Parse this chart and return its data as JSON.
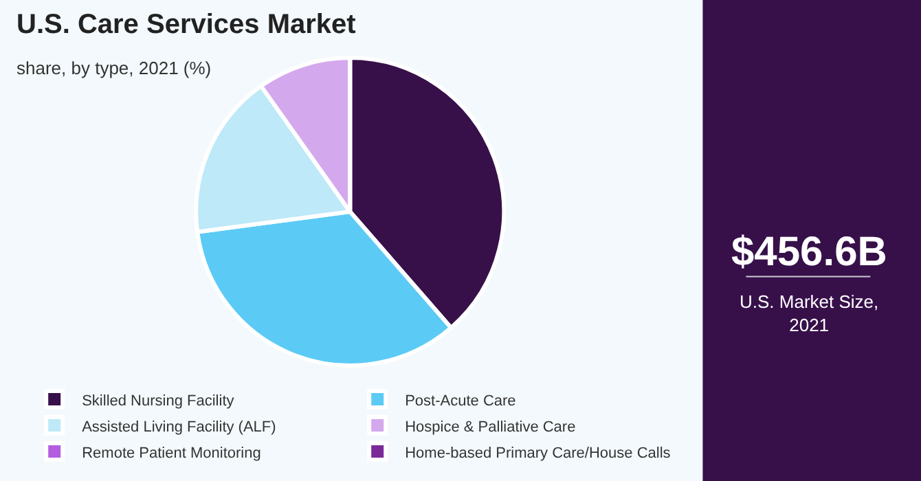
{
  "chart_data": {
    "type": "pie",
    "title": "U.S. Care Services Market",
    "subtitle": "share, by type, 2021 (%)",
    "categories": [
      "Skilled Nursing Facility",
      "Post-Acute Care",
      "Assisted Living Facility (ALF)",
      "Hospice & Palliative Care",
      "Remote Patient Monitoring",
      "Home-based Primary Care/House Calls"
    ],
    "values": [
      38.6,
      34.3,
      17.3,
      9.8,
      0,
      0
    ],
    "colors": [
      "#37104a",
      "#5bcbf5",
      "#bde9f9",
      "#d4a8ec",
      "#b35ee0",
      "#7b2a9a"
    ],
    "legend": "bottom",
    "annotations": [
      "$456.6B",
      "U.S. Market Size, 2021"
    ]
  }
}
